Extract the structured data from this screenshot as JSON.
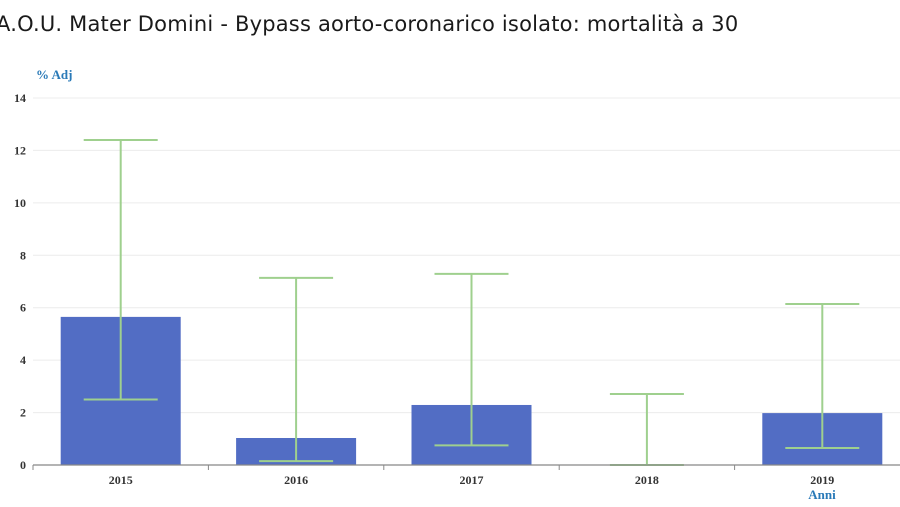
{
  "chart_data": {
    "type": "bar",
    "title": "A.O.U. Mater Domini - Bypass aorto-coronarico isolato: mortalità a 30",
    "ylabel": "% Adj",
    "xlabel": "Anni",
    "categories": [
      "2015",
      "2016",
      "2017",
      "2018",
      "2019"
    ],
    "values": [
      5.65,
      1.03,
      2.29,
      0,
      1.98
    ],
    "ci_lower": [
      2.5,
      0.15,
      0.75,
      0,
      0.65
    ],
    "ci_upper": [
      12.4,
      7.14,
      7.29,
      2.71,
      6.14
    ],
    "ylim": [
      0,
      14
    ],
    "yticks": [
      "0",
      "2",
      "4",
      "6",
      "8",
      "10",
      "12",
      "14"
    ],
    "grid": true,
    "colors": {
      "bar": "#526dc4",
      "error_bar": "#9fd08e",
      "axis_label": "#2a7ab8"
    }
  }
}
